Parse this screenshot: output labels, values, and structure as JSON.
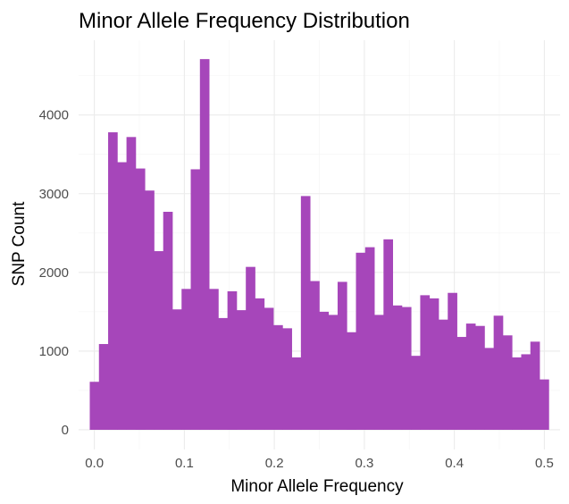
{
  "chart_data": {
    "type": "bar",
    "title": "Minor Allele Frequency Distribution",
    "xlabel": "Minor Allele Frequency",
    "ylabel": "SNP Count",
    "xlim": [
      -0.0175,
      0.5175
    ],
    "ylim": [
      -250,
      4950
    ],
    "x_ticks": [
      0.0,
      0.1,
      0.2,
      0.3,
      0.4,
      0.5
    ],
    "x_tick_labels": [
      "0.0",
      "0.1",
      "0.2",
      "0.3",
      "0.4",
      "0.5"
    ],
    "y_ticks": [
      0,
      1000,
      2000,
      3000,
      4000
    ],
    "y_tick_labels": [
      "0",
      "1000",
      "2000",
      "3000",
      "4000"
    ],
    "bin_width": 0.0102,
    "bin_start": -0.0051,
    "values": [
      610,
      1090,
      3780,
      3400,
      3720,
      3320,
      3040,
      2270,
      2770,
      1530,
      1790,
      3310,
      4710,
      1790,
      1420,
      1760,
      1520,
      2070,
      1670,
      1550,
      1330,
      1290,
      920,
      2970,
      1890,
      1500,
      1460,
      1880,
      1240,
      2250,
      2320,
      1460,
      2420,
      1580,
      1560,
      940,
      1710,
      1670,
      1400,
      1740,
      1180,
      1350,
      1320,
      1040,
      1450,
      1200,
      920,
      960,
      1120,
      640
    ],
    "bar_color": "#A646BA",
    "grid": true,
    "legend": "none"
  }
}
